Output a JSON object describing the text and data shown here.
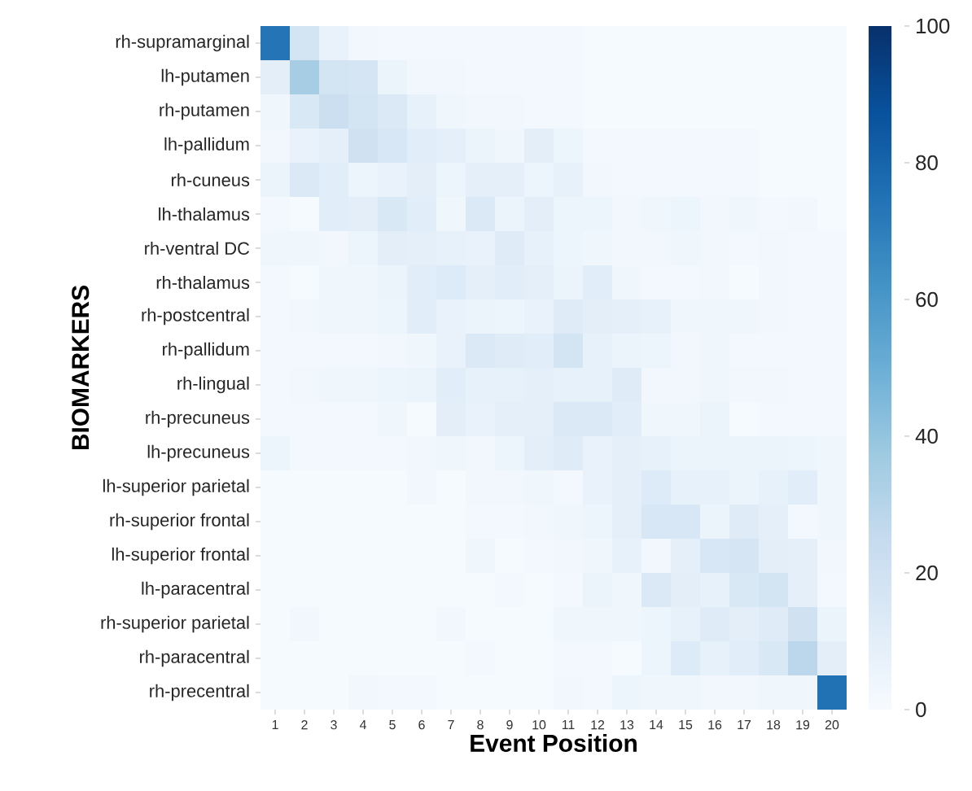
{
  "chart_data": {
    "type": "heatmap",
    "xlabel": "Event Position",
    "ylabel": "BIOMARKERS",
    "categories": [
      "1",
      "2",
      "3",
      "4",
      "5",
      "6",
      "7",
      "8",
      "9",
      "10",
      "11",
      "12",
      "13",
      "14",
      "15",
      "16",
      "17",
      "18",
      "19",
      "20"
    ],
    "y_categories": [
      "rh-supramarginal",
      "lh-putamen",
      "rh-putamen",
      "lh-pallidum",
      "rh-cuneus",
      "lh-thalamus",
      "rh-ventral DC",
      "rh-thalamus",
      "rh-postcentral",
      "rh-pallidum",
      "rh-lingual",
      "rh-precuneus",
      "lh-precuneus",
      "lh-superior parietal",
      "rh-superior frontal",
      "lh-superior frontal",
      "lh-paracentral",
      "rh-superior parietal",
      "rh-paracentral",
      "rh-precentral"
    ],
    "cells": [
      [
        74,
        18,
        7,
        3,
        2,
        2,
        2,
        2,
        2,
        2,
        2,
        1,
        1,
        1,
        1,
        1,
        1,
        1,
        1,
        1
      ],
      [
        10,
        35,
        18,
        17,
        6,
        3,
        3,
        2,
        2,
        2,
        2,
        1,
        1,
        1,
        1,
        1,
        1,
        1,
        1,
        1
      ],
      [
        4,
        15,
        22,
        18,
        14,
        8,
        4,
        3,
        3,
        2,
        2,
        1,
        1,
        1,
        1,
        1,
        1,
        1,
        1,
        1
      ],
      [
        3,
        7,
        9,
        20,
        16,
        11,
        9,
        6,
        4,
        10,
        5,
        2,
        2,
        2,
        2,
        2,
        2,
        1,
        1,
        1
      ],
      [
        6,
        14,
        11,
        5,
        7,
        10,
        5,
        9,
        9,
        5,
        8,
        3,
        2,
        2,
        2,
        2,
        2,
        1,
        1,
        1
      ],
      [
        2,
        1,
        11,
        10,
        15,
        11,
        4,
        14,
        6,
        10,
        5,
        5,
        3,
        4,
        5,
        3,
        4,
        2,
        3,
        1
      ],
      [
        4,
        4,
        3,
        5,
        10,
        9,
        8,
        7,
        12,
        8,
        5,
        4,
        3,
        3,
        4,
        3,
        2,
        3,
        2,
        2
      ],
      [
        2,
        1,
        4,
        4,
        6,
        11,
        13,
        9,
        11,
        9,
        6,
        11,
        4,
        2,
        2,
        3,
        1,
        3,
        2,
        2
      ],
      [
        2,
        3,
        4,
        4,
        5,
        11,
        7,
        6,
        5,
        7,
        12,
        10,
        9,
        8,
        4,
        4,
        4,
        3,
        2,
        2
      ],
      [
        2,
        2,
        2,
        2,
        3,
        4,
        7,
        14,
        12,
        11,
        18,
        8,
        6,
        5,
        3,
        4,
        2,
        2,
        2,
        2
      ],
      [
        2,
        3,
        4,
        4,
        5,
        6,
        11,
        8,
        8,
        9,
        8,
        8,
        12,
        3,
        3,
        4,
        3,
        3,
        2,
        2
      ],
      [
        2,
        2,
        2,
        2,
        4,
        1,
        10,
        7,
        9,
        9,
        14,
        14,
        11,
        4,
        4,
        6,
        1,
        2,
        2,
        2
      ],
      [
        5,
        2,
        2,
        2,
        2,
        3,
        4,
        3,
        5,
        10,
        12,
        7,
        9,
        8,
        6,
        6,
        6,
        6,
        5,
        4
      ],
      [
        1,
        1,
        1,
        1,
        1,
        3,
        1,
        3,
        3,
        4,
        2,
        7,
        9,
        13,
        8,
        8,
        6,
        8,
        11,
        4
      ],
      [
        1,
        1,
        1,
        1,
        1,
        1,
        1,
        2,
        2,
        3,
        4,
        5,
        9,
        16,
        16,
        6,
        12,
        9,
        2,
        4
      ],
      [
        1,
        1,
        1,
        1,
        1,
        1,
        1,
        4,
        1,
        2,
        3,
        4,
        8,
        3,
        9,
        16,
        17,
        10,
        9,
        3
      ],
      [
        1,
        1,
        1,
        1,
        1,
        1,
        1,
        1,
        2,
        1,
        2,
        6,
        4,
        14,
        10,
        8,
        15,
        18,
        9,
        2
      ],
      [
        1,
        3,
        1,
        1,
        1,
        1,
        3,
        1,
        1,
        1,
        4,
        4,
        4,
        5,
        8,
        12,
        10,
        12,
        20,
        6
      ],
      [
        1,
        1,
        1,
        1,
        1,
        1,
        1,
        2,
        1,
        1,
        2,
        2,
        1,
        5,
        13,
        8,
        11,
        15,
        28,
        10
      ],
      [
        1,
        1,
        1,
        3,
        2,
        2,
        1,
        1,
        1,
        1,
        3,
        2,
        5,
        4,
        4,
        3,
        3,
        4,
        4,
        75
      ]
    ],
    "clim": [
      0,
      100
    ],
    "cticks": [
      0,
      20,
      40,
      60,
      80,
      100
    ]
  }
}
